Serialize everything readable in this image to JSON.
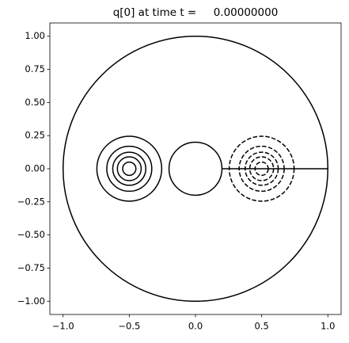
{
  "chart_data": {
    "type": "contour",
    "title": "q[0] at time t =     0.00000000",
    "color": "#000000",
    "xlim": [
      -1.1,
      1.1
    ],
    "ylim": [
      -1.1,
      1.1
    ],
    "xticks": [
      {
        "value": -1.0,
        "label": "−1.0"
      },
      {
        "value": -0.5,
        "label": "−0.5"
      },
      {
        "value": 0.0,
        "label": "0.0"
      },
      {
        "value": 0.5,
        "label": "0.5"
      },
      {
        "value": 1.0,
        "label": "1.0"
      }
    ],
    "yticks": [
      {
        "value": -1.0,
        "label": "−1.00"
      },
      {
        "value": -0.75,
        "label": "−0.75"
      },
      {
        "value": -0.5,
        "label": "−0.50"
      },
      {
        "value": -0.25,
        "label": "−0.25"
      },
      {
        "value": 0.0,
        "label": "0.00"
      },
      {
        "value": 0.25,
        "label": "0.25"
      },
      {
        "value": 0.5,
        "label": "0.50"
      },
      {
        "value": 0.75,
        "label": "0.75"
      },
      {
        "value": 1.0,
        "label": "1.00"
      }
    ],
    "contours": [
      {
        "cx": 0,
        "cy": 0,
        "radii": [
          1.0
        ],
        "style": "solid"
      },
      {
        "cx": 0,
        "cy": 0,
        "radii": [
          0.2
        ],
        "style": "solid"
      },
      {
        "cx": -0.5,
        "cy": 0,
        "radii": [
          0.245,
          0.17,
          0.125,
          0.09,
          0.05
        ],
        "style": "solid"
      },
      {
        "cx": 0.5,
        "cy": 0,
        "radii": [
          0.245,
          0.17,
          0.125,
          0.09,
          0.05
        ],
        "style": "dashed"
      }
    ],
    "segments": [
      {
        "x": [
          0.2,
          1.0
        ],
        "y": [
          0,
          0
        ]
      }
    ]
  }
}
